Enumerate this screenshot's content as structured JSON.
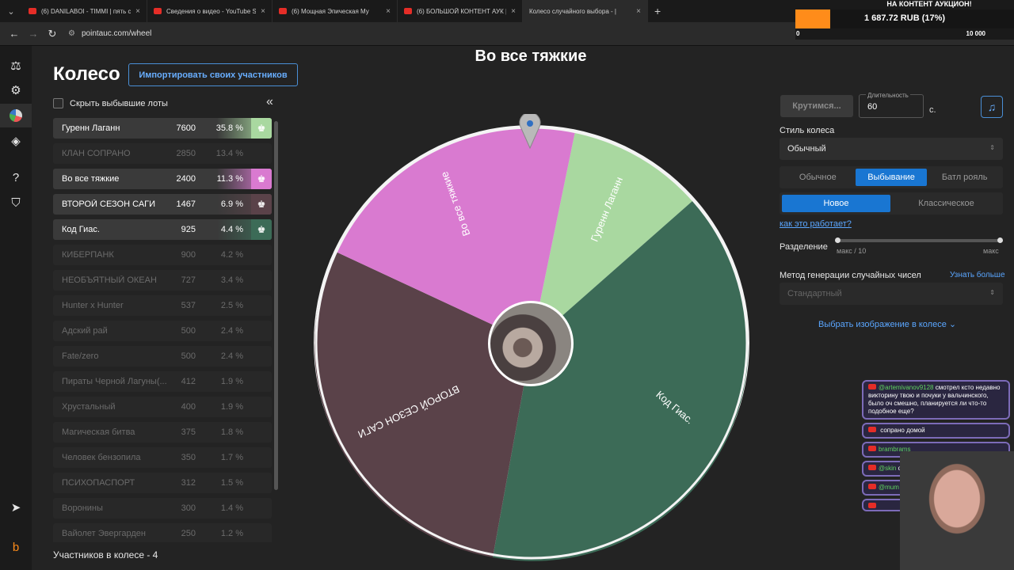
{
  "browser": {
    "tabs": [
      {
        "title": "(6) DANILABOI - TIMMI | пять с",
        "icon": "youtube-icon",
        "active": false
      },
      {
        "title": "Сведения о видео - YouTube S",
        "icon": "youtube-icon",
        "active": false
      },
      {
        "title": "(6) Мощная Эпическая Му",
        "icon": "youtube-icon",
        "active": false
      },
      {
        "title": "(6) БОЛЬШОЙ КОНТЕНТ АУК |",
        "icon": "youtube-icon",
        "active": false
      },
      {
        "title": "Колесо случайного выбора - |",
        "icon": "wheel-icon",
        "active": true
      }
    ],
    "url": "pointauc.com/wheel"
  },
  "overlay": {
    "title": "НА КОНТЕНТ АУКЦИОН!",
    "amount": "1 687.72 RUB (17%)",
    "progress": 0.17,
    "min": "0",
    "max": "10 000"
  },
  "page": {
    "title": "Колесо",
    "import_button": "Импортировать своих участников",
    "hide_label": "Скрыть выбывшие лоты",
    "count_label": "Участников в колесе - 4"
  },
  "lots": [
    {
      "name": "Гуренн Лаганн",
      "amount": "7600",
      "percent": "35.8 %",
      "out": false,
      "color": "#a9d8a0"
    },
    {
      "name": "КЛАН СОПРАНО",
      "amount": "2850",
      "percent": "13.4 %",
      "out": true
    },
    {
      "name": "Во все тяжкие",
      "amount": "2400",
      "percent": "11.3 %",
      "out": false,
      "color": "#d97ad0"
    },
    {
      "name": "ВТОРОЙ СЕЗОН САГИ",
      "amount": "1467",
      "percent": "6.9 %",
      "out": false,
      "color": "#5a4249"
    },
    {
      "name": "Код Гиас.",
      "amount": "925",
      "percent": "4.4 %",
      "out": false,
      "color": "#3c6b57"
    },
    {
      "name": "КИБЕРПАНК",
      "amount": "900",
      "percent": "4.2 %",
      "out": true
    },
    {
      "name": "НЕОБЪЯТНЫЙ ОКЕАН",
      "amount": "727",
      "percent": "3.4 %",
      "out": true
    },
    {
      "name": "Hunter x Hunter",
      "amount": "537",
      "percent": "2.5 %",
      "out": true
    },
    {
      "name": "Адский рай",
      "amount": "500",
      "percent": "2.4 %",
      "out": true
    },
    {
      "name": "Fate/zero",
      "amount": "500",
      "percent": "2.4 %",
      "out": true
    },
    {
      "name": "Пираты Черной Лагуны(...",
      "amount": "412",
      "percent": "1.9 %",
      "out": true
    },
    {
      "name": "Хрустальный",
      "amount": "400",
      "percent": "1.9 %",
      "out": true
    },
    {
      "name": "Магическая битва",
      "amount": "375",
      "percent": "1.8 %",
      "out": true
    },
    {
      "name": "Человек бензопила",
      "amount": "350",
      "percent": "1.7 %",
      "out": true
    },
    {
      "name": "ПСИХОПАСПОРТ",
      "amount": "312",
      "percent": "1.5 %",
      "out": true
    },
    {
      "name": "Воронины",
      "amount": "300",
      "percent": "1.4 %",
      "out": true
    },
    {
      "name": "Вайолет Эвергарден",
      "amount": "250",
      "percent": "1.2 %",
      "out": true
    }
  ],
  "wheel": {
    "winner": "Во все тяжкие",
    "segments": [
      {
        "label": "Гуренн Лаганн",
        "color": "#a9d8a0"
      },
      {
        "label": "Код Гиас.",
        "color": "#3c6b57"
      },
      {
        "label": "ВТОРОЙ СЕЗОН САГИ",
        "color": "#5a4249"
      },
      {
        "label": "Во все тяжкие",
        "color": "#d97ad0"
      }
    ]
  },
  "controls": {
    "spin_button": "Крутимся...",
    "duration_label": "Длительность",
    "duration_value": "60",
    "duration_unit": "с.",
    "style_label": "Стиль колеса",
    "style_value": "Обычный",
    "mode_options": [
      "Обычное",
      "Выбывание",
      "Батл рояль"
    ],
    "mode_selected": "Выбывание",
    "variant_options": [
      "Новое",
      "Классическое"
    ],
    "variant_selected": "Новое",
    "how_link": "как это работает?",
    "split_label": "Разделение",
    "split_min": "макс / 10",
    "split_max": "макс",
    "rng_label": "Метод генерации случайных чисел",
    "rng_more": "Узнать больше",
    "rng_value": "Стандартный",
    "image_pick": "Выбрать изображение в колесе"
  },
  "chat": [
    {
      "user": "@artemivanov9128",
      "text": "смотрел ксто недавно викторину твою и почуки у вальчинского, было оч смешно, планируется ли что-то подобное еще?"
    },
    {
      "user": "",
      "text": "сопрано домой"
    },
    {
      "user": "brambrams",
      "text": ""
    },
    {
      "user": "@skin",
      "text": "очень хвал..."
    },
    {
      "user": "@mum",
      "text": ""
    },
    {
      "user": "",
      "text": ""
    }
  ]
}
